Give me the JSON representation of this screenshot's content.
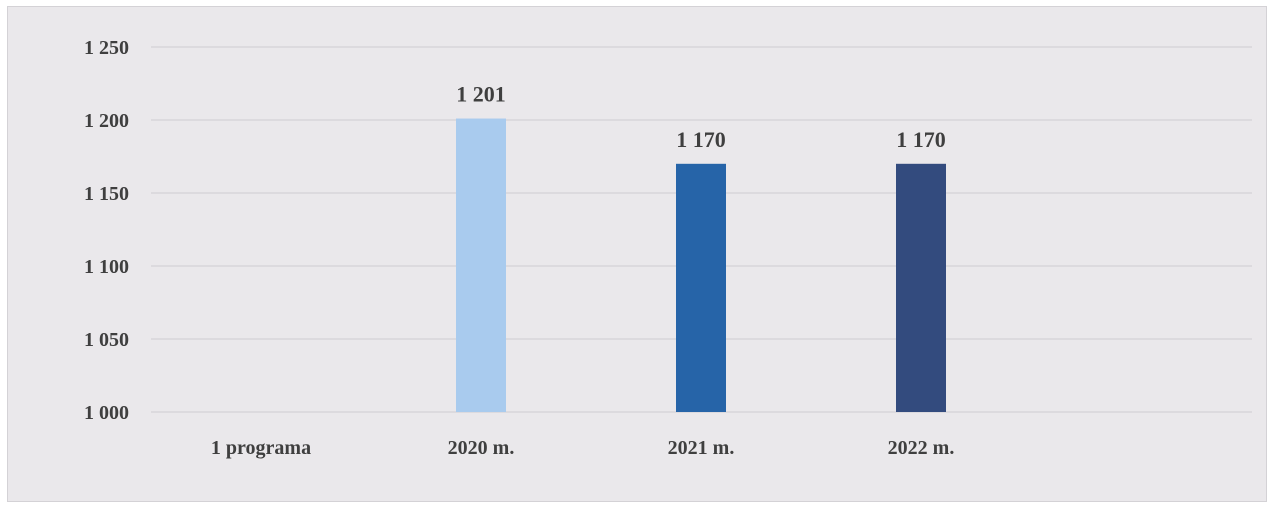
{
  "chart_data": {
    "type": "bar",
    "categories": [
      "1 programa",
      "2020 m.",
      "2021 m.",
      "2022 m."
    ],
    "values": [
      null,
      1201,
      1170,
      1170
    ],
    "data_labels": [
      "",
      "1 201",
      "1 170",
      "1 170"
    ],
    "bar_colors": [
      "#a9cbee",
      "#a9cbee",
      "#2664a8",
      "#334b7e"
    ],
    "ylim": [
      1000,
      1250
    ],
    "yticks": [
      1000,
      1050,
      1100,
      1150,
      1200,
      1250
    ],
    "ytick_labels": [
      "1 000",
      "1 050",
      "1 100",
      "1 150",
      "1 200",
      "1 250"
    ],
    "title": "",
    "xlabel": "",
    "ylabel": "",
    "grid": true,
    "legend": "none"
  }
}
